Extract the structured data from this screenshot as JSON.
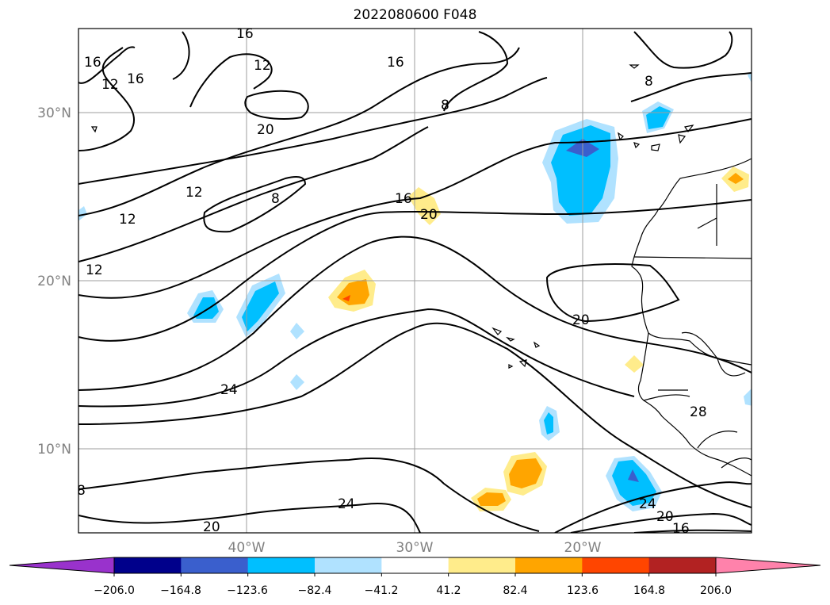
{
  "title": "2022080600 F048",
  "map": {
    "projection": "PlateCarree",
    "extent": {
      "lon_min": -50,
      "lon_max": -10,
      "lat_min": 5,
      "lat_max": 35
    },
    "gridlines": true,
    "lat_labels": [
      "30°N",
      "20°N",
      "10°N"
    ],
    "lon_labels": [
      "40°W",
      "30°W",
      "20°W"
    ],
    "contour_labels": [
      "16",
      "16",
      "12",
      "12",
      "16",
      "16",
      "20",
      "8",
      "8",
      "12",
      "12",
      "8",
      "16",
      "20",
      "12",
      "20",
      "24",
      "28",
      "8",
      "24",
      "24",
      "20",
      "20",
      "16"
    ]
  },
  "colorbar": {
    "extend": "both",
    "ticks": [
      "−206.0",
      "−164.8",
      "−123.6",
      "−82.4",
      "−41.2",
      "41.2",
      "82.4",
      "123.6",
      "164.8",
      "206.0"
    ],
    "colors": [
      "#9932cc",
      "#00008b",
      "#3a5fcd",
      "#00bfff",
      "#b0e2ff",
      "#ffffff",
      "#ffec8b",
      "#ffa500",
      "#ff4500",
      "#b22222",
      "#ff82ab"
    ]
  }
}
